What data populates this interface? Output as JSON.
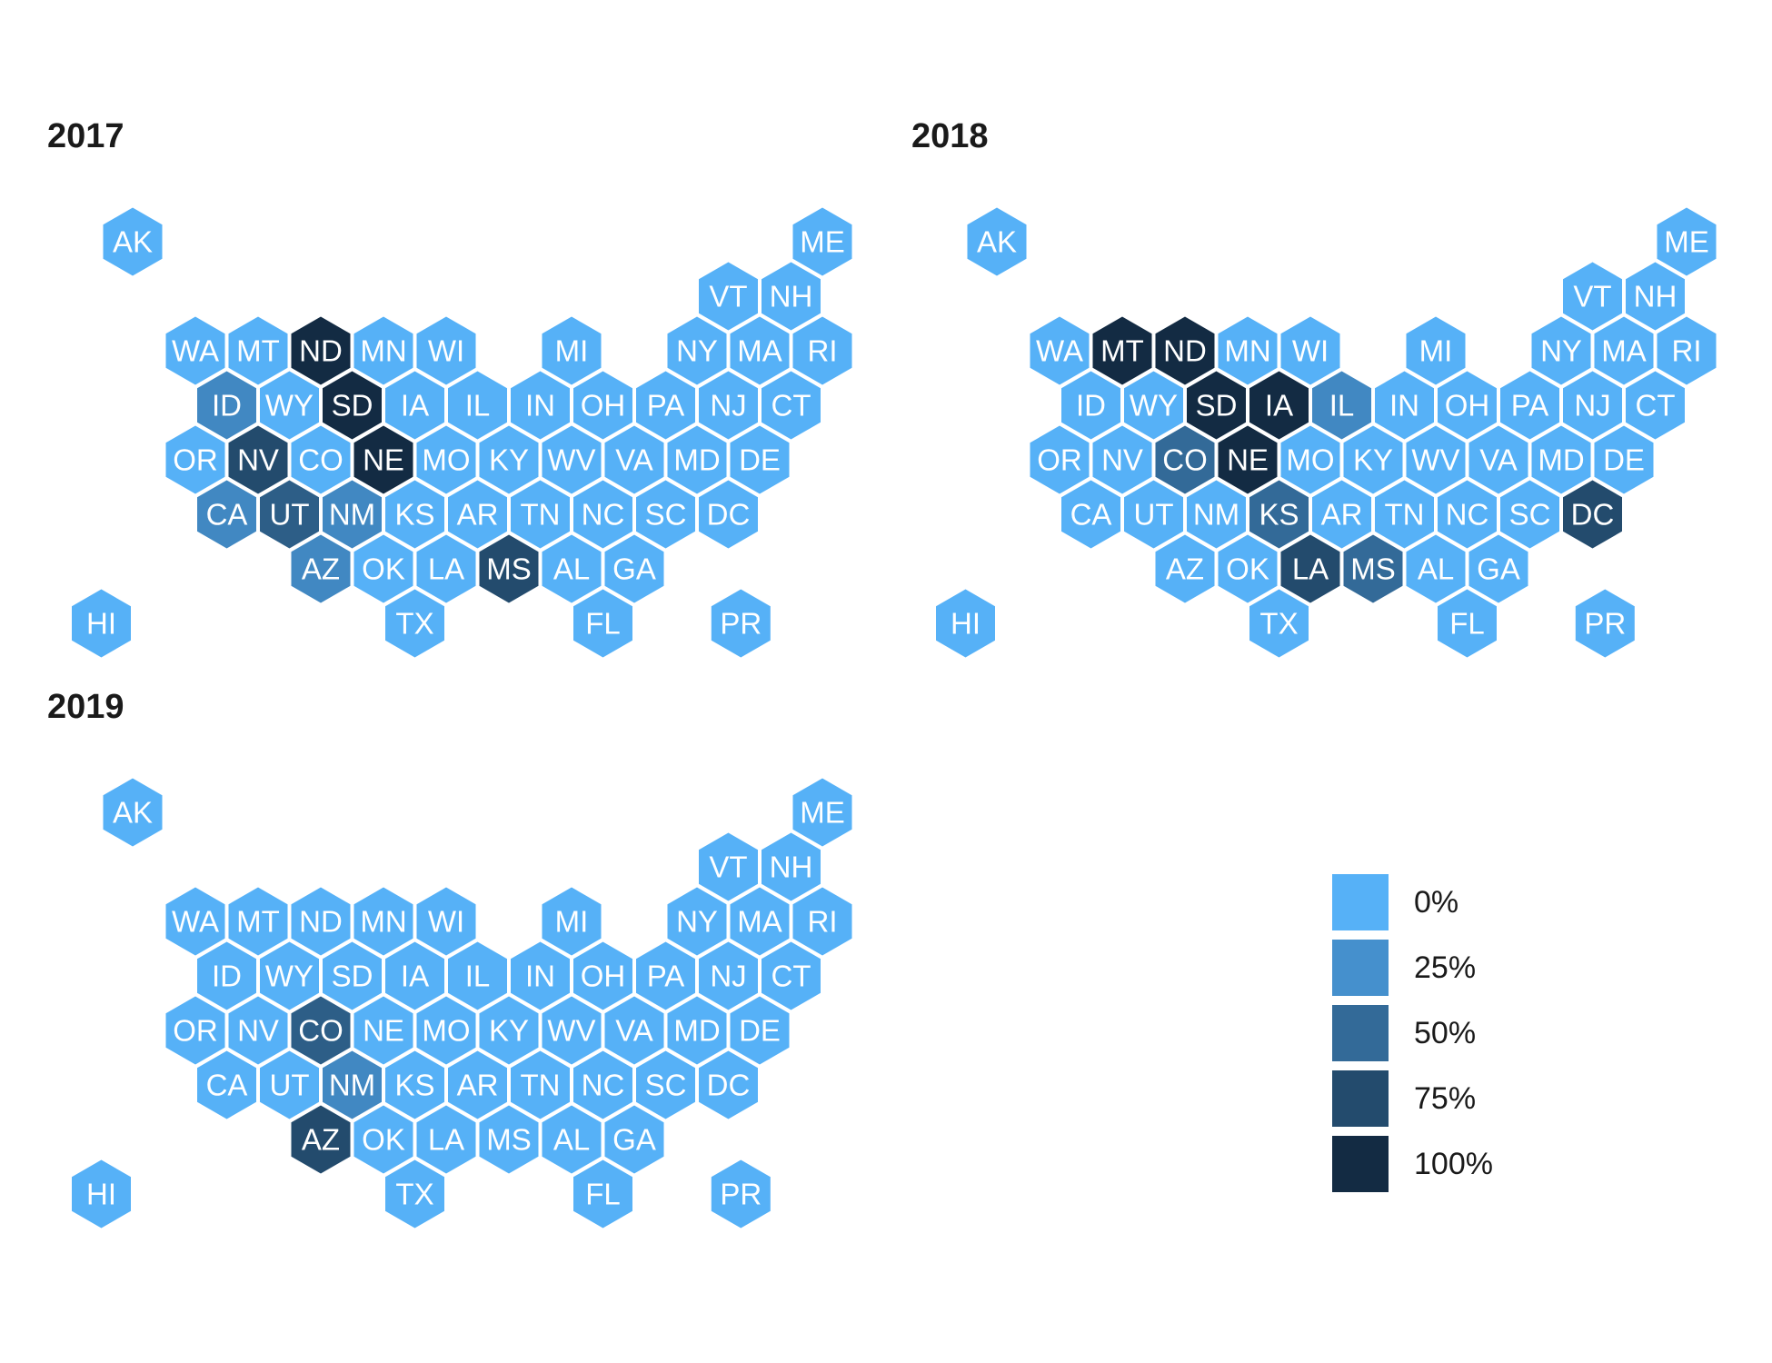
{
  "chart_data": {
    "type": "hex-tile-map",
    "legend": {
      "labels": [
        "0%",
        "25%",
        "50%",
        "75%",
        "100%"
      ],
      "values": [
        0,
        25,
        50,
        75,
        100
      ],
      "colors": [
        "#56B1F7",
        "#4590CD",
        "#336A98",
        "#234B6D",
        "#132B43"
      ]
    },
    "layout": {
      "AK": [
        0,
        0
      ],
      "ME": [
        11,
        0
      ],
      "VT": [
        9.5,
        1
      ],
      "NH": [
        10.5,
        1
      ],
      "WA": [
        1,
        2
      ],
      "MT": [
        2,
        2
      ],
      "ND": [
        3,
        2
      ],
      "MN": [
        4,
        2
      ],
      "WI": [
        5,
        2
      ],
      "MI": [
        7,
        2
      ],
      "NY": [
        9,
        2
      ],
      "MA": [
        10,
        2
      ],
      "RI": [
        11,
        2
      ],
      "ID": [
        1.5,
        3
      ],
      "WY": [
        2.5,
        3
      ],
      "SD": [
        3.5,
        3
      ],
      "IA": [
        4.5,
        3
      ],
      "IL": [
        5.5,
        3
      ],
      "IN": [
        6.5,
        3
      ],
      "OH": [
        7.5,
        3
      ],
      "PA": [
        8.5,
        3
      ],
      "NJ": [
        9.5,
        3
      ],
      "CT": [
        10.5,
        3
      ],
      "OR": [
        1,
        4
      ],
      "NV": [
        2,
        4
      ],
      "CO": [
        3,
        4
      ],
      "NE": [
        4,
        4
      ],
      "MO": [
        5,
        4
      ],
      "KY": [
        6,
        4
      ],
      "WV": [
        7,
        4
      ],
      "VA": [
        8,
        4
      ],
      "MD": [
        9,
        4
      ],
      "DE": [
        10,
        4
      ],
      "CA": [
        1.5,
        5
      ],
      "UT": [
        2.5,
        5
      ],
      "NM": [
        3.5,
        5
      ],
      "KS": [
        4.5,
        5
      ],
      "AR": [
        5.5,
        5
      ],
      "TN": [
        6.5,
        5
      ],
      "NC": [
        7.5,
        5
      ],
      "SC": [
        8.5,
        5
      ],
      "DC": [
        9.5,
        5
      ],
      "AZ": [
        3,
        6
      ],
      "OK": [
        4,
        6
      ],
      "LA": [
        5,
        6
      ],
      "MS": [
        6,
        6
      ],
      "AL": [
        7,
        6
      ],
      "GA": [
        8,
        6
      ],
      "HI": [
        -0.5,
        7
      ],
      "TX": [
        4.5,
        7
      ],
      "FL": [
        7.5,
        7
      ],
      "PR": [
        9.7,
        7
      ]
    },
    "panels": [
      {
        "title": "2017",
        "values": {
          "ND": 100,
          "SD": 100,
          "NE": 100,
          "NV": 75,
          "MS": 75,
          "UT": 60,
          "ID": 30,
          "CA": 30,
          "NM": 30,
          "AZ": 30
        }
      },
      {
        "title": "2018",
        "values": {
          "MT": 100,
          "ND": 100,
          "SD": 100,
          "IA": 100,
          "NE": 100,
          "LA": 75,
          "DC": 75,
          "CO": 50,
          "KS": 50,
          "MS": 50,
          "IL": 30
        }
      },
      {
        "title": "2019",
        "values": {
          "AZ": 75,
          "CO": 60,
          "NM": 30
        }
      }
    ]
  }
}
